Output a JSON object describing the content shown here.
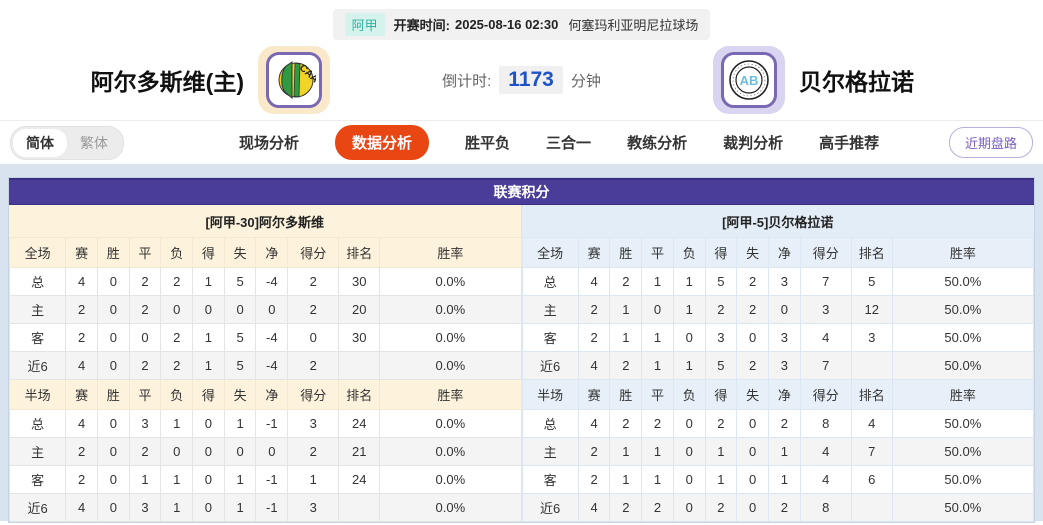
{
  "colors": {
    "header_purple": "#4a3c99",
    "active_tab_red": "#e84612",
    "home_section_cream": "#fdf3dd",
    "away_section_blue": "#e3edf7",
    "countdown_blue": "#1e53c8",
    "league_badge_teal": "#2fb3a0"
  },
  "top_bar": {
    "league": "阿甲",
    "kickoff_label": "开赛时间:",
    "kickoff_time": "2025-08-16 02:30",
    "venue": "何塞玛利亚明尼拉球场"
  },
  "header": {
    "home_team": "阿尔多斯维(主)",
    "away_team": "贝尔格拉诺",
    "home_logo_text": "CAA",
    "away_logo_text": "AB",
    "countdown_label": "倒计时:",
    "countdown_value": "1173",
    "countdown_unit": "分钟"
  },
  "nav": {
    "lang_simplified": "简体",
    "lang_traditional": "繁体",
    "tabs": [
      "现场分析",
      "数据分析",
      "胜平负",
      "三合一",
      "教练分析",
      "裁判分析",
      "高手推荐"
    ],
    "active_tab": "数据分析",
    "recent_button": "近期盘路"
  },
  "table": {
    "title": "联赛积分",
    "home_section": "[阿甲-30]阿尔多斯维",
    "away_section": "[阿甲-5]贝尔格拉诺",
    "full_header": [
      "全场",
      "赛",
      "胜",
      "平",
      "负",
      "得",
      "失",
      "净",
      "得分",
      "排名",
      "胜率"
    ],
    "half_header": [
      "半场",
      "赛",
      "胜",
      "平",
      "负",
      "得",
      "失",
      "净",
      "得分",
      "排名",
      "胜率"
    ],
    "home_full": [
      [
        "总",
        "4",
        "0",
        "2",
        "2",
        "1",
        "5",
        "-4",
        "2",
        "30",
        "0.0%"
      ],
      [
        "主",
        "2",
        "0",
        "2",
        "0",
        "0",
        "0",
        "0",
        "2",
        "20",
        "0.0%"
      ],
      [
        "客",
        "2",
        "0",
        "0",
        "2",
        "1",
        "5",
        "-4",
        "0",
        "30",
        "0.0%"
      ],
      [
        "近6",
        "4",
        "0",
        "2",
        "2",
        "1",
        "5",
        "-4",
        "2",
        "",
        "0.0%"
      ]
    ],
    "home_half": [
      [
        "总",
        "4",
        "0",
        "3",
        "1",
        "0",
        "1",
        "-1",
        "3",
        "24",
        "0.0%"
      ],
      [
        "主",
        "2",
        "0",
        "2",
        "0",
        "0",
        "0",
        "0",
        "2",
        "21",
        "0.0%"
      ],
      [
        "客",
        "2",
        "0",
        "1",
        "1",
        "0",
        "1",
        "-1",
        "1",
        "24",
        "0.0%"
      ],
      [
        "近6",
        "4",
        "0",
        "3",
        "1",
        "0",
        "1",
        "-1",
        "3",
        "",
        "0.0%"
      ]
    ],
    "away_full": [
      [
        "总",
        "4",
        "2",
        "1",
        "1",
        "5",
        "2",
        "3",
        "7",
        "5",
        "50.0%"
      ],
      [
        "主",
        "2",
        "1",
        "0",
        "1",
        "2",
        "2",
        "0",
        "3",
        "12",
        "50.0%"
      ],
      [
        "客",
        "2",
        "1",
        "1",
        "0",
        "3",
        "0",
        "3",
        "4",
        "3",
        "50.0%"
      ],
      [
        "近6",
        "4",
        "2",
        "1",
        "1",
        "5",
        "2",
        "3",
        "7",
        "",
        "50.0%"
      ]
    ],
    "away_half": [
      [
        "总",
        "4",
        "2",
        "2",
        "0",
        "2",
        "0",
        "2",
        "8",
        "4",
        "50.0%"
      ],
      [
        "主",
        "2",
        "1",
        "1",
        "0",
        "1",
        "0",
        "1",
        "4",
        "7",
        "50.0%"
      ],
      [
        "客",
        "2",
        "1",
        "1",
        "0",
        "1",
        "0",
        "1",
        "4",
        "6",
        "50.0%"
      ],
      [
        "近6",
        "4",
        "2",
        "2",
        "0",
        "2",
        "0",
        "2",
        "8",
        "",
        "50.0%"
      ]
    ]
  }
}
